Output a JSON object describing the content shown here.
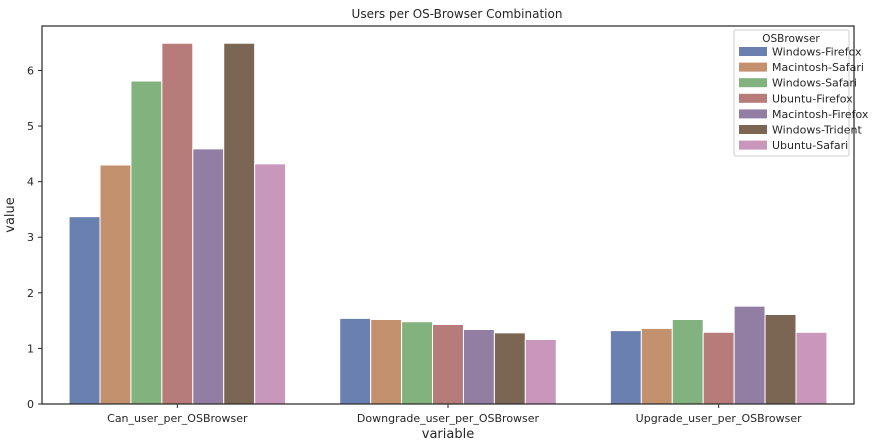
{
  "chart_data": {
    "type": "bar",
    "title": "Users per OS-Browser Combination",
    "xlabel": "variable",
    "ylabel": "value",
    "ylim": [
      0,
      6.8
    ],
    "yticks": [
      0,
      1,
      2,
      3,
      4,
      5,
      6
    ],
    "grid": false,
    "legend": {
      "title": "OSBrowser",
      "placement": "top-right"
    },
    "categories": [
      "Can_user_per_OSBrowser",
      "Downgrade_user_per_OSBrowser",
      "Upgrade_user_per_OSBrowser"
    ],
    "series": [
      {
        "name": "Windows-Firefox",
        "color": "#6a80b0",
        "values": [
          3.37,
          1.54,
          1.32
        ]
      },
      {
        "name": "Macintosh-Safari",
        "color": "#c4916f",
        "values": [
          4.3,
          1.52,
          1.36
        ]
      },
      {
        "name": "Windows-Safari",
        "color": "#82b27e",
        "values": [
          5.81,
          1.48,
          1.52
        ]
      },
      {
        "name": "Ubuntu-Firefox",
        "color": "#b77b7a",
        "values": [
          6.49,
          1.43,
          1.29
        ]
      },
      {
        "name": "Macintosh-Firefox",
        "color": "#937ea3",
        "values": [
          4.59,
          1.34,
          1.76
        ]
      },
      {
        "name": "Windows-Trident",
        "color": "#7b6653",
        "values": [
          6.49,
          1.28,
          1.61
        ]
      },
      {
        "name": "Ubuntu-Safari",
        "color": "#c897bb",
        "values": [
          4.32,
          1.16,
          1.29
        ]
      }
    ]
  }
}
